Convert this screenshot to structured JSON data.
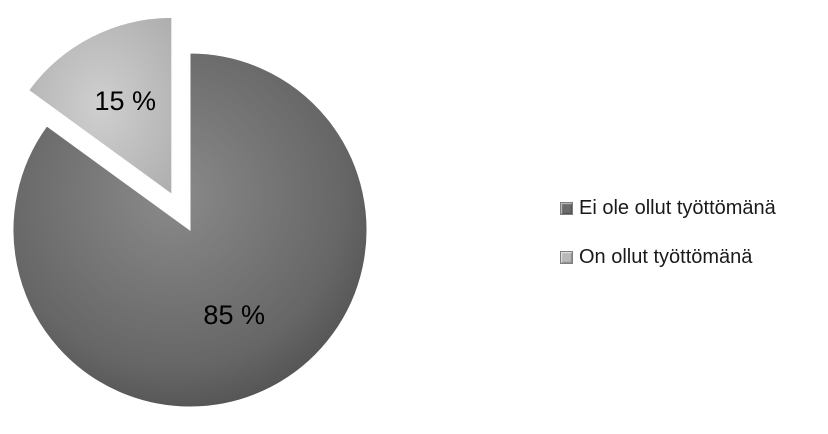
{
  "chart_data": {
    "type": "pie",
    "title": "",
    "categories": [
      "Ei ole ollut työttömänä",
      "On ollut työttömänä"
    ],
    "values": [
      85,
      15
    ],
    "data_labels": [
      "85 %",
      "15 %"
    ],
    "colors": [
      "#6b6b6b",
      "#b9b9b9"
    ],
    "exploded_slice": 1,
    "legend_position": "right"
  },
  "legend": {
    "items": [
      {
        "label": "Ei ole ollut työttömänä",
        "color": "#6b6b6b"
      },
      {
        "label": "On ollut työttömänä",
        "color": "#b9b9b9"
      }
    ]
  }
}
